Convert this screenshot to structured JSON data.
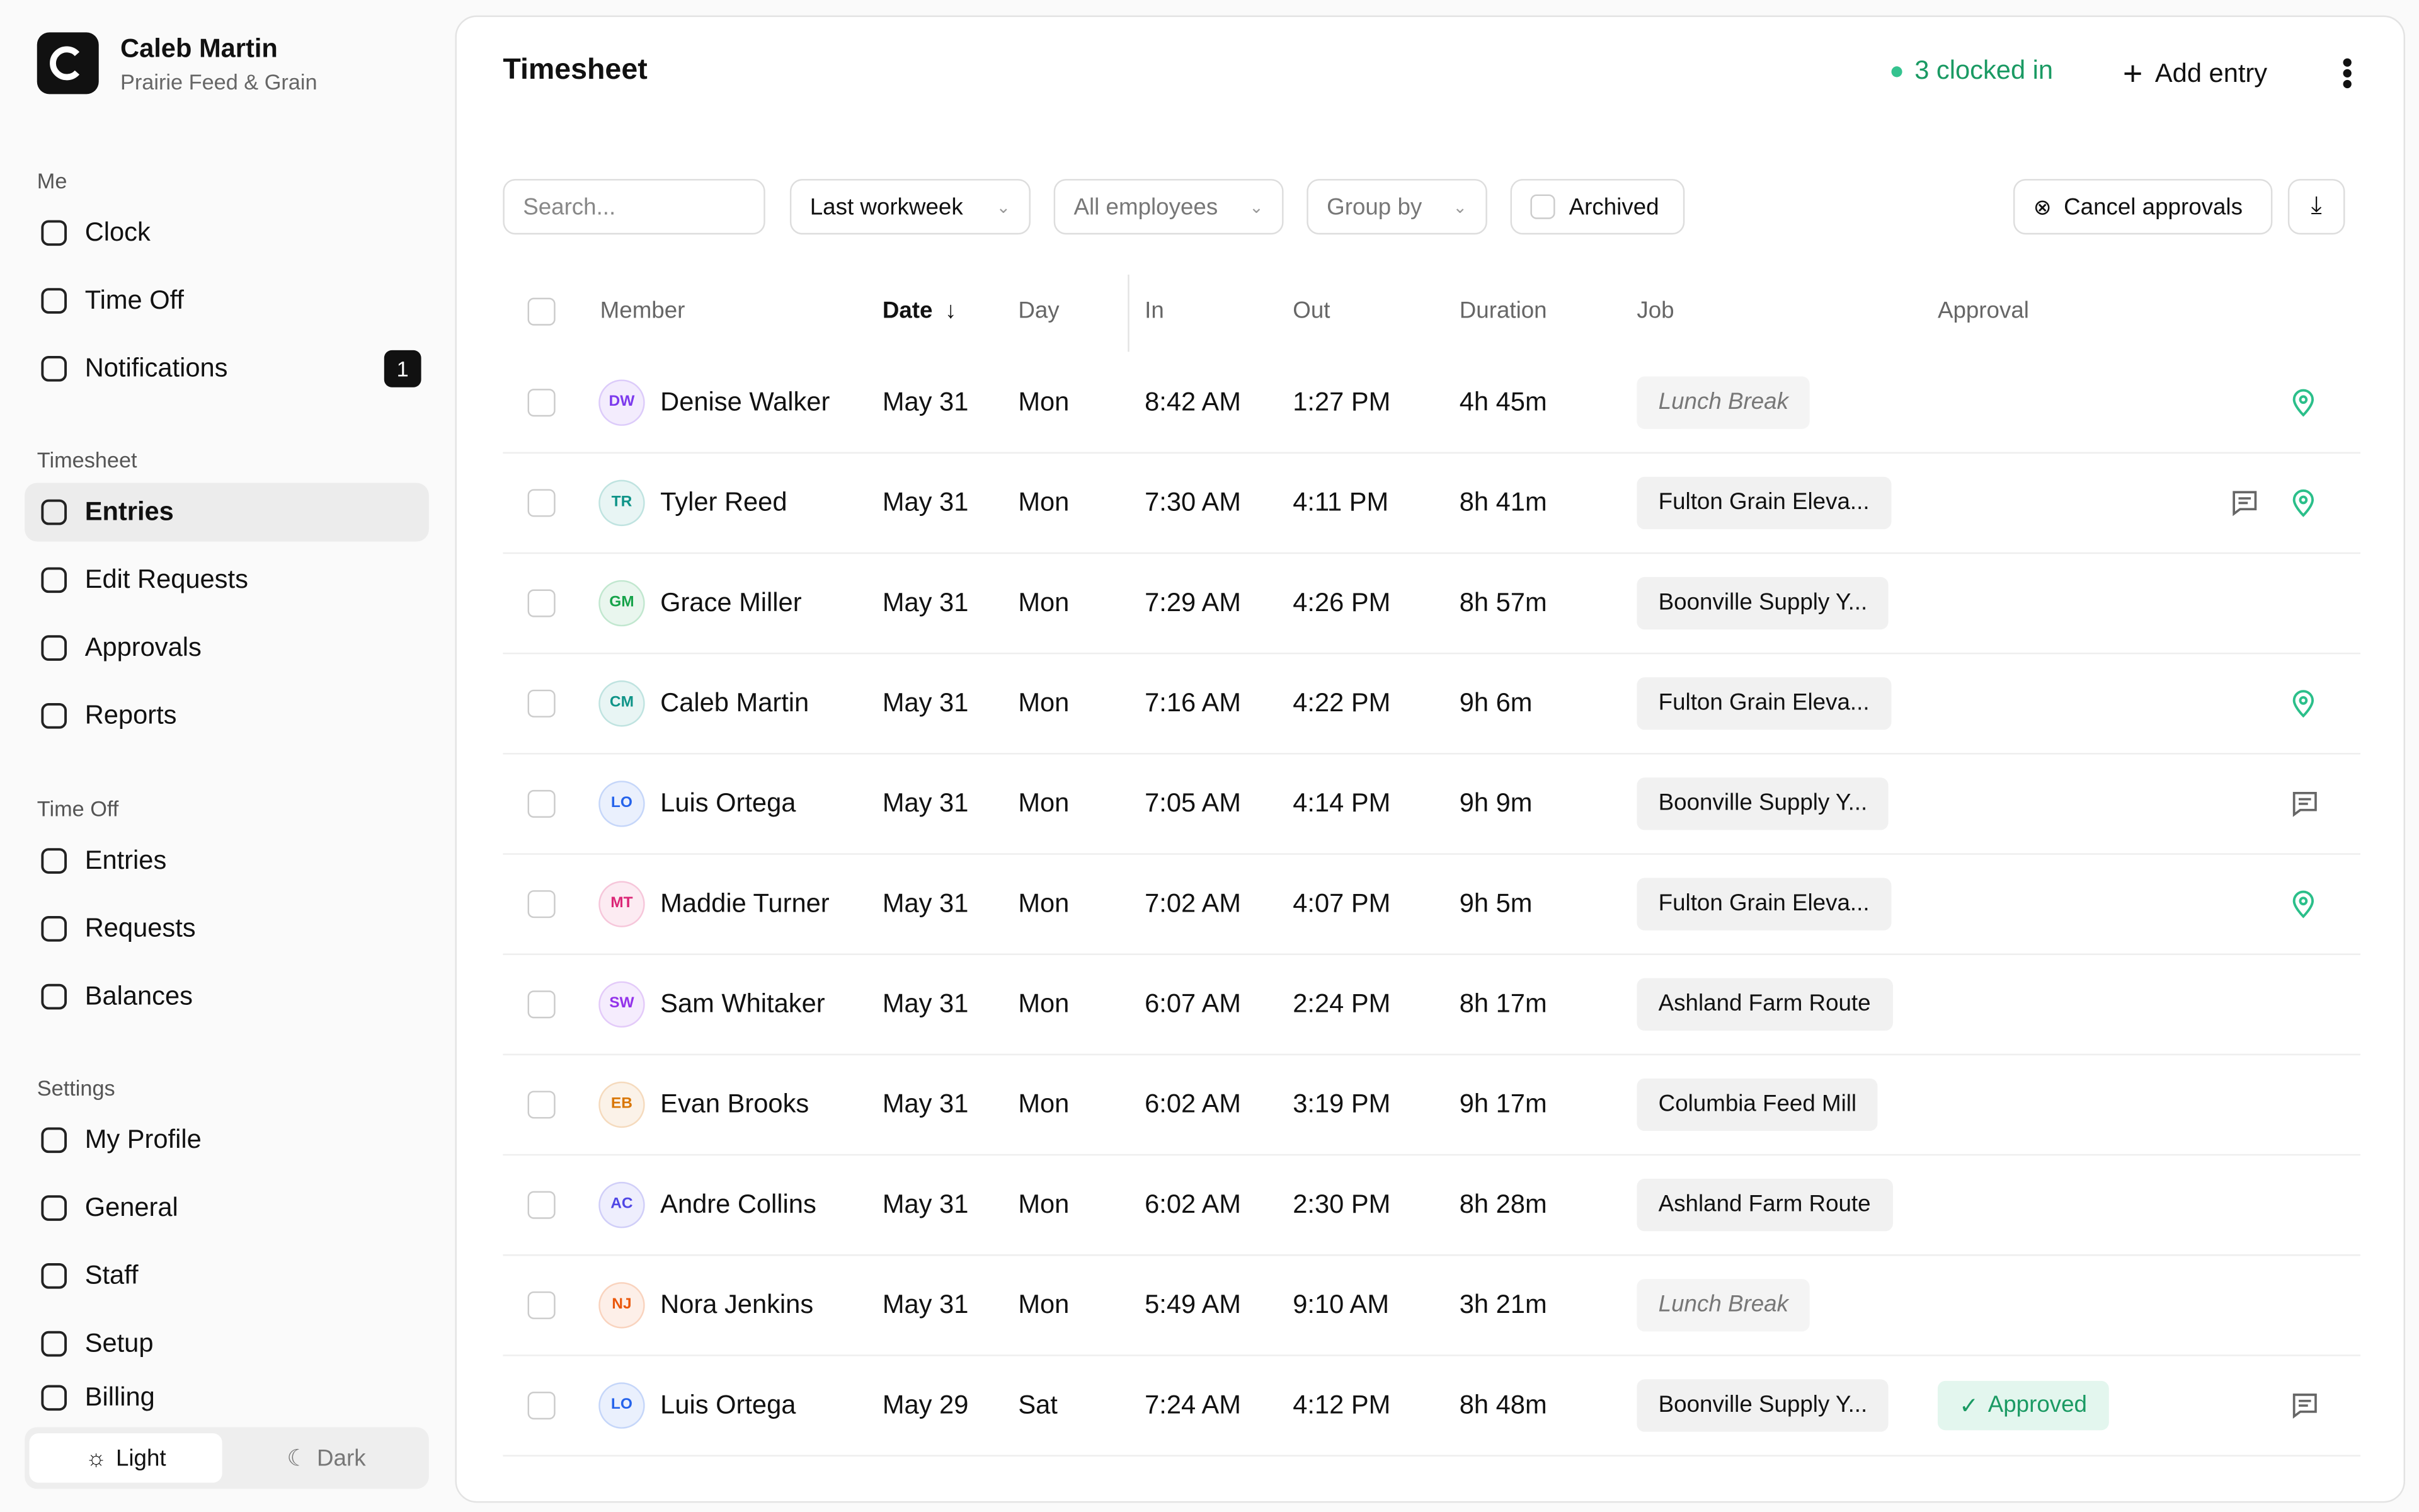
{
  "sidebar": {
    "user_name": "Caleb Martin",
    "company": "Prairie Feed & Grain",
    "sections": [
      {
        "title": "Me",
        "items": [
          {
            "label": "Clock"
          },
          {
            "label": "Time Off"
          },
          {
            "label": "Notifications",
            "badge": "1"
          }
        ]
      },
      {
        "title": "Timesheet",
        "items": [
          {
            "label": "Entries",
            "active": true
          },
          {
            "label": "Edit Requests"
          },
          {
            "label": "Approvals"
          },
          {
            "label": "Reports"
          }
        ]
      },
      {
        "title": "Time Off",
        "items": [
          {
            "label": "Entries"
          },
          {
            "label": "Requests"
          },
          {
            "label": "Balances"
          }
        ]
      },
      {
        "title": "Settings",
        "items": [
          {
            "label": "My Profile"
          },
          {
            "label": "General"
          },
          {
            "label": "Staff"
          },
          {
            "label": "Setup"
          },
          {
            "label": "Billing"
          }
        ]
      }
    ],
    "theme": {
      "light": "Light",
      "dark": "Dark"
    }
  },
  "header": {
    "title": "Timesheet",
    "clocked_in": "3 clocked in",
    "add_entry": "Add entry"
  },
  "filters": {
    "search_placeholder": "Search...",
    "range": "Last workweek",
    "employees": "All employees",
    "group_by": "Group by",
    "archived": "Archived",
    "cancel_approvals": "Cancel approvals"
  },
  "table": {
    "columns": [
      "Member",
      "Date",
      "Day",
      "In",
      "Out",
      "Duration",
      "Job",
      "Approval"
    ],
    "rows": [
      {
        "initials": "DW",
        "avatar_color": "#7c3aed",
        "name": "Denise Walker",
        "date": "May 31",
        "day": "Mon",
        "in": "8:42 AM",
        "out": "1:27 PM",
        "duration": "4h 45m",
        "job": "Lunch Break",
        "is_break": true
      },
      {
        "initials": "TR",
        "avatar_color": "#0f9488",
        "name": "Tyler Reed",
        "date": "May 31",
        "day": "Mon",
        "in": "7:30 AM",
        "out": "4:11 PM",
        "duration": "8h 41m",
        "job": "Fulton Grain Eleva..."
      },
      {
        "initials": "GM",
        "avatar_color": "#16a34a",
        "name": "Grace Miller",
        "date": "May 31",
        "day": "Mon",
        "in": "7:29 AM",
        "out": "4:26 PM",
        "duration": "8h 57m",
        "job": "Boonville Supply Y..."
      },
      {
        "initials": "CM",
        "avatar_color": "#0f9488",
        "name": "Caleb Martin",
        "date": "May 31",
        "day": "Mon",
        "in": "7:16 AM",
        "out": "4:22 PM",
        "duration": "9h 6m",
        "job": "Fulton Grain Eleva..."
      },
      {
        "initials": "LO",
        "avatar_color": "#2563eb",
        "name": "Luis Ortega",
        "date": "May 31",
        "day": "Mon",
        "in": "7:05 AM",
        "out": "4:14 PM",
        "duration": "9h 9m",
        "job": "Boonville Supply Y..."
      },
      {
        "initials": "MT",
        "avatar_color": "#db2777",
        "name": "Maddie Turner",
        "date": "May 31",
        "day": "Mon",
        "in": "7:02 AM",
        "out": "4:07 PM",
        "duration": "9h 5m",
        "job": "Fulton Grain Eleva..."
      },
      {
        "initials": "SW",
        "avatar_color": "#9333ea",
        "name": "Sam Whitaker",
        "date": "May 31",
        "day": "Mon",
        "in": "6:07 AM",
        "out": "2:24 PM",
        "duration": "8h 17m",
        "job": "Ashland Farm Route"
      },
      {
        "initials": "EB",
        "avatar_color": "#d97706",
        "name": "Evan Brooks",
        "date": "May 31",
        "day": "Mon",
        "in": "6:02 AM",
        "out": "3:19 PM",
        "duration": "9h 17m",
        "job": "Columbia Feed Mill"
      },
      {
        "initials": "AC",
        "avatar_color": "#4f46e5",
        "name": "Andre Collins",
        "date": "May 31",
        "day": "Mon",
        "in": "6:02 AM",
        "out": "2:30 PM",
        "duration": "8h 28m",
        "job": "Ashland Farm Route"
      },
      {
        "initials": "NJ",
        "avatar_color": "#ea580c",
        "name": "Nora Jenkins",
        "date": "May 31",
        "day": "Mon",
        "in": "5:49 AM",
        "out": "9:10 AM",
        "duration": "3h 21m",
        "job": "Lunch Break",
        "is_break": true
      },
      {
        "initials": "LO",
        "avatar_color": "#2563eb",
        "name": "Luis Ortega",
        "date": "May 29",
        "day": "Sat",
        "in": "7:24 AM",
        "out": "4:12 PM",
        "duration": "8h 48m",
        "job": "Boonville Supply Y...",
        "approval": "Approved"
      }
    ]
  }
}
